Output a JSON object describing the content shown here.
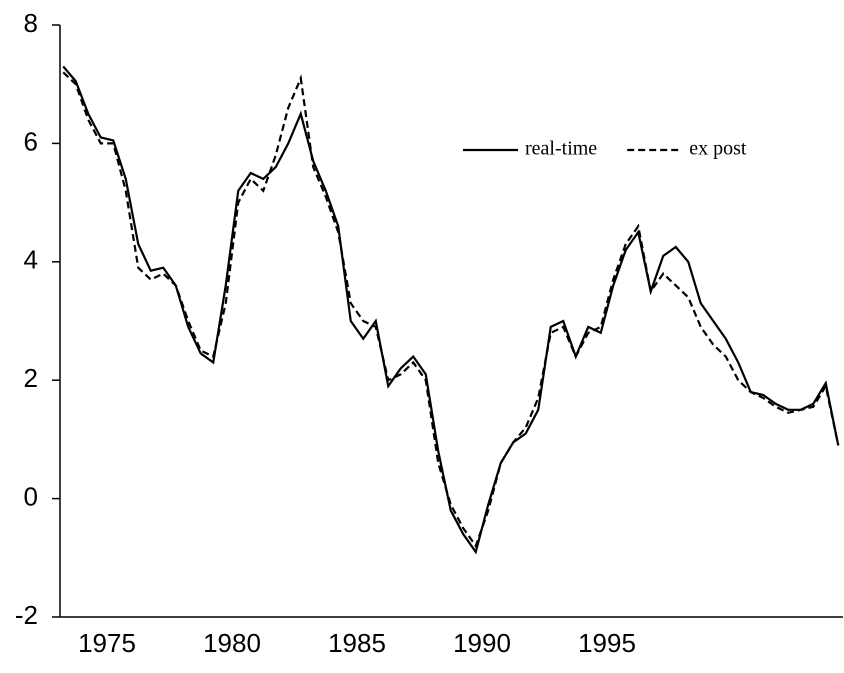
{
  "chart_data": {
    "type": "line",
    "x": [
      1973.25,
      1973.75,
      1974.25,
      1974.75,
      1975.25,
      1975.75,
      1976.25,
      1976.75,
      1977.25,
      1977.75,
      1978.25,
      1978.75,
      1979.25,
      1979.75,
      1980.25,
      1980.75,
      1981.25,
      1981.75,
      1982.25,
      1982.75,
      1983.25,
      1983.75,
      1984.25,
      1984.75,
      1985.25,
      1985.75,
      1986.25,
      1986.75,
      1987.25,
      1987.75,
      1988.25,
      1988.75,
      1989.25,
      1989.75,
      1990.25,
      1990.75,
      1991.25,
      1991.75,
      1992.25,
      1992.75,
      1993.25,
      1993.75,
      1994.25,
      1994.75,
      1995.25,
      1995.75,
      1996.25,
      1996.75,
      1997.25,
      1997.75,
      1998.25,
      1998.75,
      1999.25,
      1999.75,
      2000.25,
      2000.75,
      2001.25,
      2001.75,
      2002.25,
      2002.75,
      2003.25,
      2003.75,
      2004.25
    ],
    "series": [
      {
        "name": "real-time",
        "color": "#000000",
        "dash": false,
        "values": [
          7.3,
          7.05,
          6.5,
          6.1,
          6.05,
          5.4,
          4.3,
          3.85,
          3.9,
          3.6,
          2.9,
          2.45,
          2.3,
          3.6,
          5.2,
          5.5,
          5.4,
          5.6,
          6.0,
          6.5,
          5.7,
          5.2,
          4.6,
          3.0,
          2.7,
          3.0,
          1.9,
          2.2,
          2.4,
          2.1,
          0.8,
          -0.2,
          -0.6,
          -0.9,
          -0.1,
          0.6,
          0.95,
          1.1,
          1.5,
          2.9,
          3.0,
          2.4,
          2.9,
          2.8,
          3.6,
          4.2,
          4.5,
          3.5,
          4.1,
          4.25,
          4.0,
          3.3,
          3.0,
          2.7,
          2.3,
          1.8,
          1.75,
          1.6,
          1.5,
          1.5,
          1.6,
          1.95,
          0.9
        ]
      },
      {
        "name": "ex post",
        "color": "#000000",
        "dash": true,
        "values": [
          7.2,
          7.0,
          6.4,
          6.0,
          6.0,
          5.2,
          3.9,
          3.7,
          3.8,
          3.6,
          3.0,
          2.5,
          2.4,
          3.3,
          5.0,
          5.4,
          5.2,
          5.8,
          6.6,
          7.1,
          5.6,
          5.1,
          4.5,
          3.3,
          3.0,
          2.9,
          2.0,
          2.1,
          2.3,
          2.0,
          0.6,
          -0.1,
          -0.5,
          -0.8,
          -0.2,
          0.6,
          0.95,
          1.2,
          1.7,
          2.8,
          2.9,
          2.4,
          2.8,
          2.9,
          3.7,
          4.3,
          4.6,
          3.5,
          3.8,
          3.6,
          3.4,
          2.9,
          2.6,
          2.4,
          2.0,
          1.8,
          1.7,
          1.55,
          1.45,
          1.5,
          1.55,
          1.9,
          0.9
        ]
      }
    ],
    "xlim": [
      1973.12,
      2004.44
    ],
    "xticks": [
      1975,
      1980,
      1985,
      1990,
      1995
    ],
    "ylim": [
      -2,
      8
    ],
    "yticks": [
      8,
      6,
      4,
      2,
      0,
      -2
    ],
    "legend": "top-right"
  }
}
